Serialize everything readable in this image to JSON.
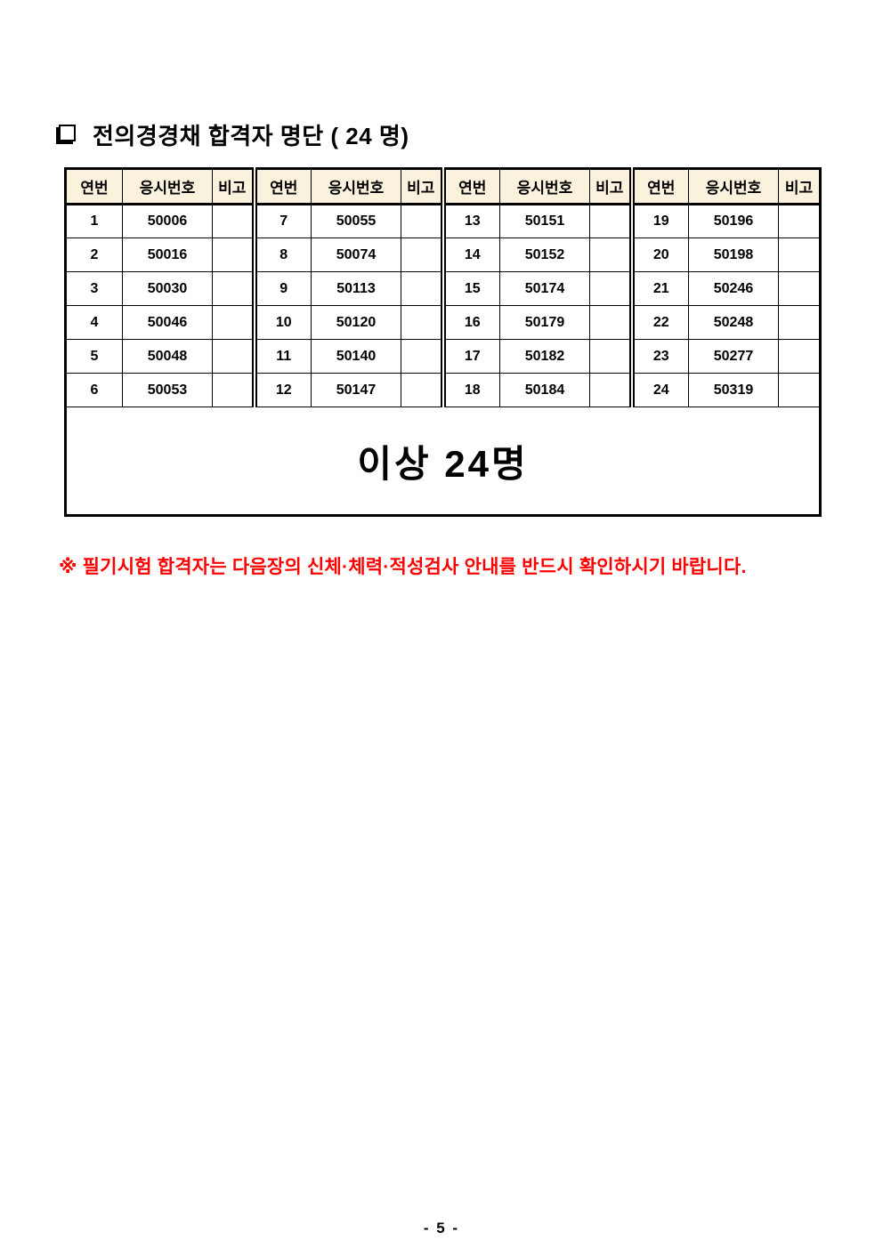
{
  "title": "전의경경채 합격자 명단 (  24 명)",
  "table": {
    "columns": [
      "연번",
      "응시번호",
      "비고"
    ],
    "header_bg": "#FBF2DE",
    "border_color": "#000000",
    "groups": [
      [
        {
          "serial": "1",
          "exam_number": "50006",
          "remark": ""
        },
        {
          "serial": "2",
          "exam_number": "50016",
          "remark": ""
        },
        {
          "serial": "3",
          "exam_number": "50030",
          "remark": ""
        },
        {
          "serial": "4",
          "exam_number": "50046",
          "remark": ""
        },
        {
          "serial": "5",
          "exam_number": "50048",
          "remark": ""
        },
        {
          "serial": "6",
          "exam_number": "50053",
          "remark": ""
        }
      ],
      [
        {
          "serial": "7",
          "exam_number": "50055",
          "remark": ""
        },
        {
          "serial": "8",
          "exam_number": "50074",
          "remark": ""
        },
        {
          "serial": "9",
          "exam_number": "50113",
          "remark": ""
        },
        {
          "serial": "10",
          "exam_number": "50120",
          "remark": ""
        },
        {
          "serial": "11",
          "exam_number": "50140",
          "remark": ""
        },
        {
          "serial": "12",
          "exam_number": "50147",
          "remark": ""
        }
      ],
      [
        {
          "serial": "13",
          "exam_number": "50151",
          "remark": ""
        },
        {
          "serial": "14",
          "exam_number": "50152",
          "remark": ""
        },
        {
          "serial": "15",
          "exam_number": "50174",
          "remark": ""
        },
        {
          "serial": "16",
          "exam_number": "50179",
          "remark": ""
        },
        {
          "serial": "17",
          "exam_number": "50182",
          "remark": ""
        },
        {
          "serial": "18",
          "exam_number": "50184",
          "remark": ""
        }
      ],
      [
        {
          "serial": "19",
          "exam_number": "50196",
          "remark": ""
        },
        {
          "serial": "20",
          "exam_number": "50198",
          "remark": ""
        },
        {
          "serial": "21",
          "exam_number": "50246",
          "remark": ""
        },
        {
          "serial": "22",
          "exam_number": "50248",
          "remark": ""
        },
        {
          "serial": "23",
          "exam_number": "50277",
          "remark": ""
        },
        {
          "serial": "24",
          "exam_number": "50319",
          "remark": ""
        }
      ]
    ],
    "footer_label": "이상 24명"
  },
  "note": "※ 필기시험 합격자는 다음장의 신체·체력·적성검사 안내를 반드시 확인하시기 바랍니다.",
  "note_color": "#FF0000",
  "page_number": "- 5 -"
}
